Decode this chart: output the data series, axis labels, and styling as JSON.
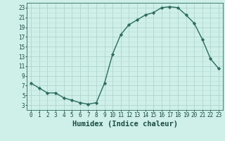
{
  "x": [
    0,
    1,
    2,
    3,
    4,
    5,
    6,
    7,
    8,
    9,
    10,
    11,
    12,
    13,
    14,
    15,
    16,
    17,
    18,
    19,
    20,
    21,
    22,
    23
  ],
  "y": [
    7.5,
    6.5,
    5.5,
    5.5,
    4.5,
    4.0,
    3.5,
    3.2,
    3.5,
    7.5,
    13.5,
    17.5,
    19.5,
    20.5,
    21.5,
    22.0,
    23.0,
    23.2,
    23.0,
    21.5,
    19.8,
    16.5,
    12.5,
    10.5
  ],
  "line_color": "#2d6b5e",
  "marker": "D",
  "marker_size": 2.2,
  "bg_color": "#cef0e8",
  "grid_color_major": "#aacfc8",
  "grid_color_minor": "#bcddd8",
  "xlabel": "Humidex (Indice chaleur)",
  "xlabel_fontsize": 7.5,
  "xlim": [
    -0.5,
    23.5
  ],
  "ylim": [
    2,
    24
  ],
  "yticks": [
    3,
    5,
    7,
    9,
    11,
    13,
    15,
    17,
    19,
    21,
    23
  ],
  "xticks": [
    0,
    1,
    2,
    3,
    4,
    5,
    6,
    7,
    8,
    9,
    10,
    11,
    12,
    13,
    14,
    15,
    16,
    17,
    18,
    19,
    20,
    21,
    22,
    23
  ],
  "tick_fontsize": 5.5,
  "line_width": 1.0
}
